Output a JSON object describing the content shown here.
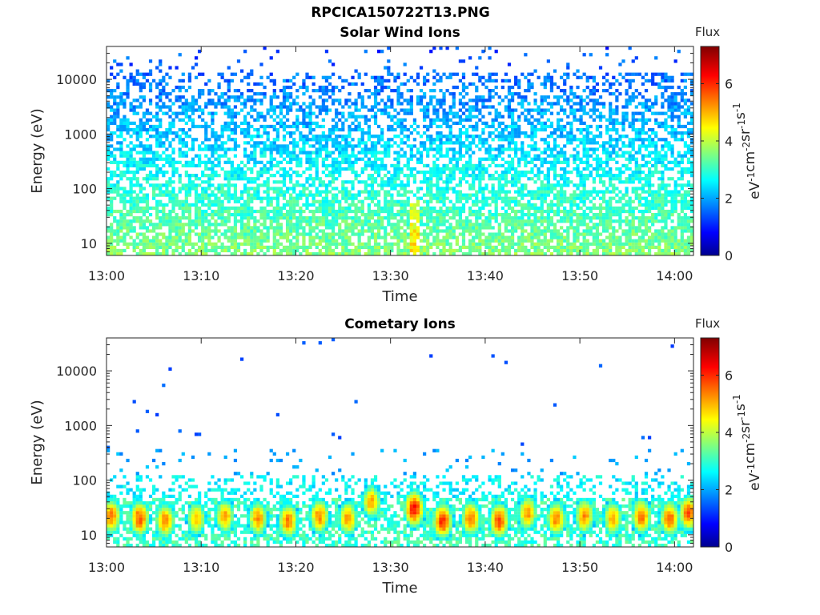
{
  "figure": {
    "title": "RPCICA150722T13.PNG"
  },
  "colorbar": {
    "label": "Flux",
    "unit_label": "eV-1cm-2sr-1s-1",
    "ticks": [
      0,
      2,
      4,
      6
    ],
    "range": [
      0,
      7.3
    ],
    "colormap": "jet"
  },
  "chart_data": [
    {
      "type": "heatmap",
      "title": "Solar Wind Ions",
      "xlabel": "Time",
      "ylabel": "Energy (eV)",
      "x_ticks": [
        "13:00",
        "13:10",
        "13:20",
        "13:30",
        "13:40",
        "13:50",
        "14:00"
      ],
      "x_range": [
        "13:00",
        "14:02"
      ],
      "y_scale": "log",
      "y_ticks": [
        10,
        100,
        1000,
        10000
      ],
      "y_range": [
        6,
        40000
      ],
      "z_range": [
        0,
        7.3
      ],
      "description_values": {
        "energy_bands_eV": [
          10,
          30,
          100,
          300,
          1000,
          3000,
          10000,
          30000
        ],
        "typical_flux_by_band": [
          3.6,
          3.2,
          2.8,
          2.4,
          2.1,
          1.9,
          1.6,
          1.4
        ],
        "coverage_by_band": [
          0.75,
          0.7,
          0.65,
          0.6,
          0.55,
          0.5,
          0.42,
          0.08
        ]
      }
    },
    {
      "type": "heatmap",
      "title": "Cometary Ions",
      "xlabel": "Time",
      "ylabel": "Energy (eV)",
      "x_ticks": [
        "13:00",
        "13:10",
        "13:20",
        "13:30",
        "13:40",
        "13:50",
        "14:00"
      ],
      "x_range": [
        "13:00",
        "14:02"
      ],
      "y_scale": "log",
      "y_ticks": [
        10,
        100,
        1000,
        10000
      ],
      "y_range": [
        6,
        40000
      ],
      "z_range": [
        0,
        7.3
      ],
      "description_values": {
        "burst_times_min": [
          0.5,
          3.5,
          6.2,
          9.5,
          12.5,
          16.0,
          19.2,
          22.5,
          25.5,
          28.0,
          32.5,
          35.5,
          38.5,
          41.5,
          44.5,
          47.5,
          50.5,
          53.5,
          56.5,
          59.5,
          61.5
        ],
        "burst_peak_flux": [
          5.6,
          5.8,
          5.5,
          5.0,
          5.2,
          5.4,
          5.6,
          5.5,
          5.3,
          5.2,
          6.3,
          6.1,
          5.6,
          5.9,
          5.3,
          5.5,
          5.4,
          5.2,
          5.6,
          5.7,
          5.8
        ],
        "burst_peak_energy_eV": [
          22,
          20,
          18,
          20,
          22,
          20,
          18,
          22,
          20,
          40,
          30,
          18,
          20,
          18,
          25,
          20,
          22,
          20,
          22,
          20,
          25
        ]
      }
    }
  ]
}
